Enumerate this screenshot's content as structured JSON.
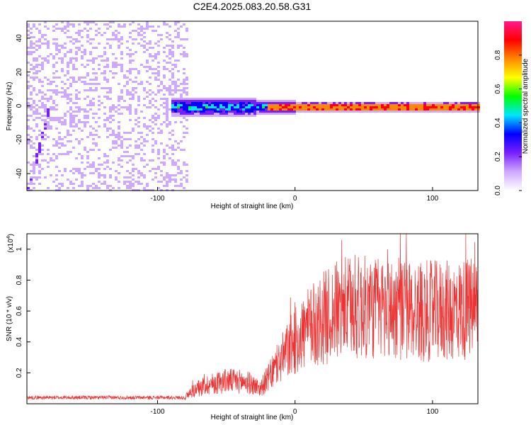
{
  "title": "C2E4.2025.083.20.58.G31",
  "chart_data": [
    {
      "type": "heatmap",
      "xlabel": "Height of straight line (km)",
      "ylabel": "Frequency (Hz)",
      "xlim": [
        -195,
        133
      ],
      "ylim": [
        -50,
        50
      ],
      "x_ticks": [
        -100,
        0,
        100
      ],
      "y_ticks": [
        -40,
        -20,
        0,
        20,
        40
      ],
      "colorbar": {
        "label": "Normalized spectral amplitude",
        "range": [
          0.0,
          1.0
        ],
        "ticks": [
          "0.0",
          "0.2",
          "0.4",
          "0.6",
          "0.8"
        ],
        "colors": [
          "#ffffff",
          "#cfa8ff",
          "#7a1fff",
          "#0000ff",
          "#00e5ff",
          "#00ff00",
          "#ffff00",
          "#ff8800",
          "#ff0000",
          "#ff1a8c"
        ]
      },
      "description": {
        "noise_region_x": [
          -195,
          -78
        ],
        "signal_center_hz": 0,
        "signal_peak_x_from": -20
      }
    },
    {
      "type": "line",
      "xlabel": "Height of straight line (km)",
      "ylabel": "SNR (10 * v/v)",
      "scale_note": "(x10",
      "scale_exp": "4",
      "xlim": [
        -195,
        133
      ],
      "ylim": [
        0,
        1.1
      ],
      "x_ticks": [
        -100,
        0,
        100
      ],
      "y_ticks": [
        0.2,
        0.4,
        0.6,
        0.8,
        1
      ],
      "y_tick_labels": [
        "0.2",
        "0.4",
        "0.6",
        "0.8",
        "1"
      ],
      "series": [
        {
          "color": "#ee3333",
          "envelope": [
            [
              -195,
              0.04
            ],
            [
              -80,
              0.04
            ],
            [
              -75,
              0.08
            ],
            [
              -65,
              0.12
            ],
            [
              -50,
              0.15
            ],
            [
              -35,
              0.14
            ],
            [
              -25,
              0.1
            ],
            [
              -15,
              0.22
            ],
            [
              -5,
              0.35
            ],
            [
              5,
              0.45
            ],
            [
              20,
              0.55
            ],
            [
              35,
              0.62
            ],
            [
              60,
              0.62
            ],
            [
              90,
              0.6
            ],
            [
              110,
              0.6
            ],
            [
              133,
              0.62
            ]
          ]
        }
      ]
    }
  ]
}
